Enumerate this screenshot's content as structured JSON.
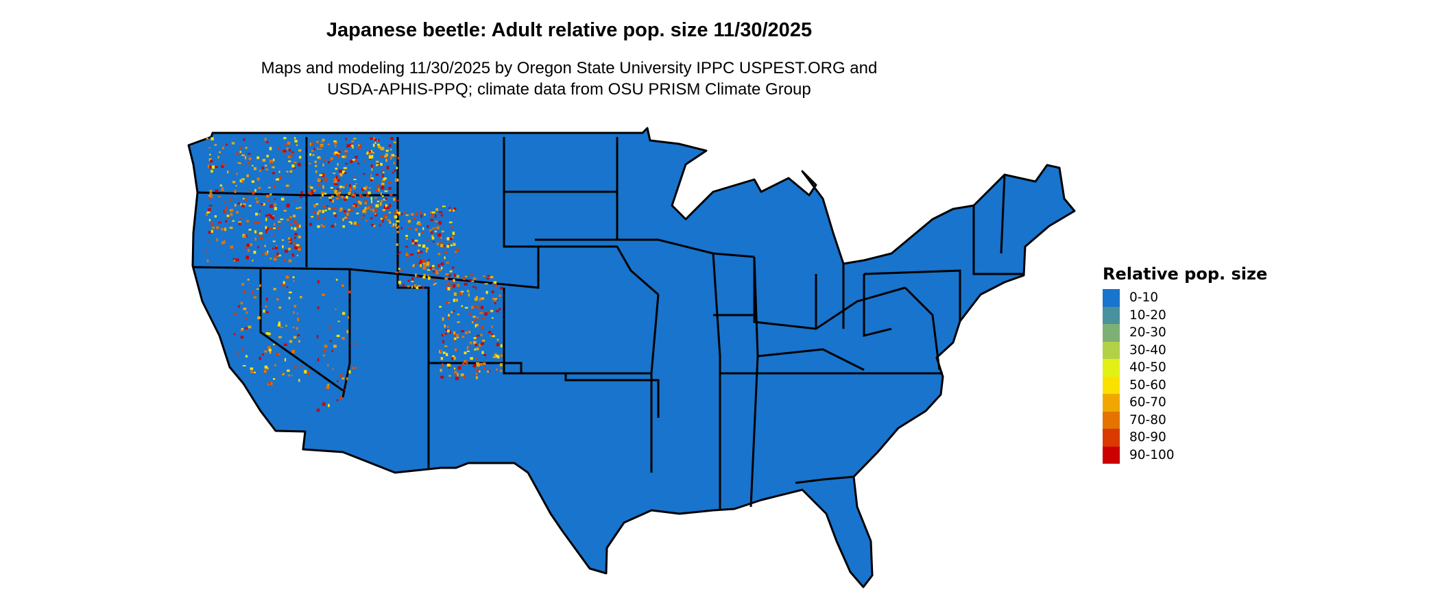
{
  "title": "Japanese beetle: Adult relative pop. size 11/30/2025",
  "subtitle_line1": "Maps and modeling 11/30/2025 by Oregon State University IPPC USPEST.ORG and",
  "subtitle_line2": "USDA-APHIS-PPQ; climate data from OSU PRISM Climate Group",
  "legend": {
    "title": "Relative pop. size",
    "items": [
      {
        "label": "0-10",
        "color": "#1874CD"
      },
      {
        "label": "10-20",
        "color": "#4A919E"
      },
      {
        "label": "20-30",
        "color": "#7DB074"
      },
      {
        "label": "30-40",
        "color": "#B2D146"
      },
      {
        "label": "40-50",
        "color": "#E3F016"
      },
      {
        "label": "50-60",
        "color": "#FAE100"
      },
      {
        "label": "60-70",
        "color": "#F0A800"
      },
      {
        "label": "70-80",
        "color": "#E47300"
      },
      {
        "label": "80-90",
        "color": "#DA3A00"
      },
      {
        "label": "90-100",
        "color": "#CC0000"
      }
    ]
  },
  "map": {
    "region": "contiguous United States",
    "dominant_class": "0-10",
    "hotspots": "western mountain regions"
  }
}
